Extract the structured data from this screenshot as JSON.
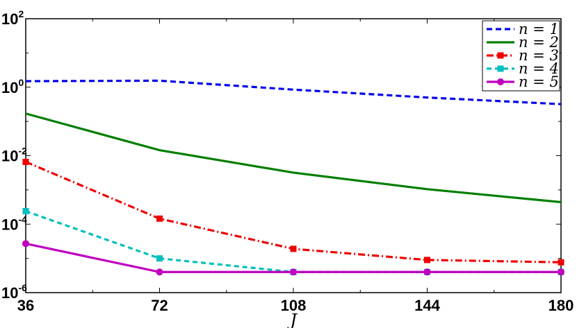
{
  "chart_data": {
    "type": "line",
    "x": [
      36,
      72,
      108,
      144,
      180
    ],
    "xticks": [
      "36",
      "72",
      "108",
      "144",
      "180"
    ],
    "xlim": [
      36,
      180
    ],
    "xlabel": "J",
    "yscale": "log",
    "ylim": [
      1e-06,
      100
    ],
    "yticks": [
      {
        "value": 1e-06,
        "base": "10",
        "exp": "-6"
      },
      {
        "value": 0.0001,
        "base": "10",
        "exp": "-4"
      },
      {
        "value": 0.01,
        "base": "10",
        "exp": "-2"
      },
      {
        "value": 1,
        "base": "10",
        "exp": "0"
      },
      {
        "value": 100,
        "base": "10",
        "exp": "2"
      }
    ],
    "legend_position": "top-right",
    "series": [
      {
        "name": "n = 1",
        "values": [
          1.5,
          1.55,
          0.85,
          0.5,
          0.32
        ],
        "color": "#0000ee",
        "dash": "8,5",
        "marker": "none"
      },
      {
        "name": "n = 2",
        "values": [
          0.17,
          0.0145,
          0.0032,
          0.00105,
          0.00044
        ],
        "color": "#007f00",
        "dash": "",
        "marker": "none"
      },
      {
        "name": "n = 3",
        "values": [
          0.0066,
          0.000145,
          1.9e-05,
          9e-06,
          7.7e-06
        ],
        "color": "#ee0000",
        "dash": "10,4,2,4",
        "marker": "square"
      },
      {
        "name": "n = 4",
        "values": [
          0.00024,
          1e-05,
          4e-06,
          4e-06,
          4e-06
        ],
        "color": "#00bfbf",
        "dash": "7,5",
        "marker": "square"
      },
      {
        "name": "n = 5",
        "values": [
          2.7e-05,
          4e-06,
          4e-06,
          4e-06,
          4e-06
        ],
        "color": "#bf00bf",
        "dash": "",
        "marker": "circle"
      }
    ]
  }
}
